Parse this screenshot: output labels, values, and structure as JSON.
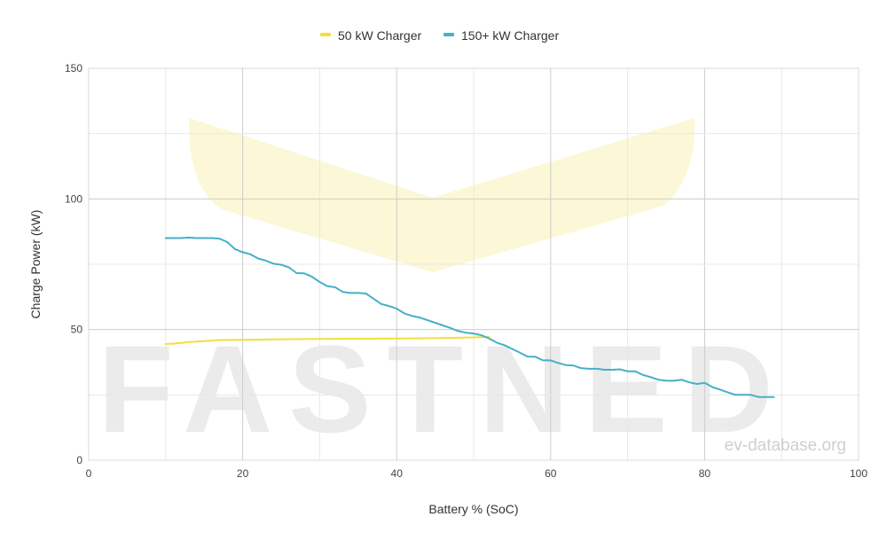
{
  "chart_data": {
    "type": "line",
    "title": "",
    "xlabel": "Battery % (SoC)",
    "ylabel": "Charge Power (kW)",
    "xlim": [
      0,
      100
    ],
    "ylim": [
      0,
      150
    ],
    "x_ticks": [
      0,
      20,
      40,
      60,
      80,
      100
    ],
    "y_ticks": [
      0,
      50,
      100,
      150
    ],
    "grid": true,
    "legend_position": "top-center",
    "watermark_text": "FASTNED",
    "credit_text": "ev-database.org",
    "series": [
      {
        "name": "50 kW Charger",
        "color": "#f2de3c",
        "points": [
          [
            10,
            44.5
          ],
          [
            11,
            44.6
          ],
          [
            13,
            45.2
          ],
          [
            17,
            46
          ],
          [
            20,
            46.1
          ],
          [
            25,
            46.3
          ],
          [
            30,
            46.4
          ],
          [
            35,
            46.5
          ],
          [
            40,
            46.6
          ],
          [
            45,
            46.7
          ],
          [
            50,
            47
          ],
          [
            52,
            47.2
          ]
        ]
      },
      {
        "name": "150+ kW Charger",
        "color": "#45b0c9",
        "points": [
          [
            10,
            85
          ],
          [
            12,
            85
          ],
          [
            13,
            85.2
          ],
          [
            14,
            85
          ],
          [
            16,
            85
          ],
          [
            17,
            84.8
          ],
          [
            18,
            83.5
          ],
          [
            19,
            80.8
          ],
          [
            20,
            79.6
          ],
          [
            21,
            78.8
          ],
          [
            22,
            77.2
          ],
          [
            23,
            76.4
          ],
          [
            24,
            75.2
          ],
          [
            25,
            74.8
          ],
          [
            26,
            73.8
          ],
          [
            27,
            71.6
          ],
          [
            28,
            71.5
          ],
          [
            29,
            70.2
          ],
          [
            30,
            68.2
          ],
          [
            31,
            66.6
          ],
          [
            32,
            66.2
          ],
          [
            33,
            64.4
          ],
          [
            34,
            64
          ],
          [
            35,
            64
          ],
          [
            36,
            63.8
          ],
          [
            37,
            61.8
          ],
          [
            38,
            59.8
          ],
          [
            39,
            59
          ],
          [
            40,
            58
          ],
          [
            41,
            56.2
          ],
          [
            42,
            55.2
          ],
          [
            43,
            54.6
          ],
          [
            44,
            53.6
          ],
          [
            45,
            52.6
          ],
          [
            46,
            51.6
          ],
          [
            47,
            50.6
          ],
          [
            48,
            49.4
          ],
          [
            49,
            48.8
          ],
          [
            50,
            48.5
          ],
          [
            51,
            47.8
          ],
          [
            52,
            46.6
          ],
          [
            53,
            45
          ],
          [
            54,
            44
          ],
          [
            55,
            42.6
          ],
          [
            56,
            41.2
          ],
          [
            57,
            39.6
          ],
          [
            58,
            39.6
          ],
          [
            59,
            38.2
          ],
          [
            60,
            38.2
          ],
          [
            61,
            37.2
          ],
          [
            62,
            36.4
          ],
          [
            63,
            36.2
          ],
          [
            64,
            35.2
          ],
          [
            65,
            35
          ],
          [
            66,
            35
          ],
          [
            67,
            34.6
          ],
          [
            68,
            34.6
          ],
          [
            69,
            34.8
          ],
          [
            70,
            34
          ],
          [
            71,
            34
          ],
          [
            72,
            32.6
          ],
          [
            73,
            31.8
          ],
          [
            74,
            30.8
          ],
          [
            75,
            30.4
          ],
          [
            76,
            30.4
          ],
          [
            77,
            30.8
          ],
          [
            78,
            29.8
          ],
          [
            79,
            29.2
          ],
          [
            80,
            29.6
          ],
          [
            81,
            28
          ],
          [
            82,
            27
          ],
          [
            83,
            26
          ],
          [
            84,
            25
          ],
          [
            85,
            25
          ],
          [
            86,
            25
          ],
          [
            87,
            24.2
          ],
          [
            88,
            24.2
          ],
          [
            89,
            24.2
          ]
        ]
      }
    ]
  }
}
